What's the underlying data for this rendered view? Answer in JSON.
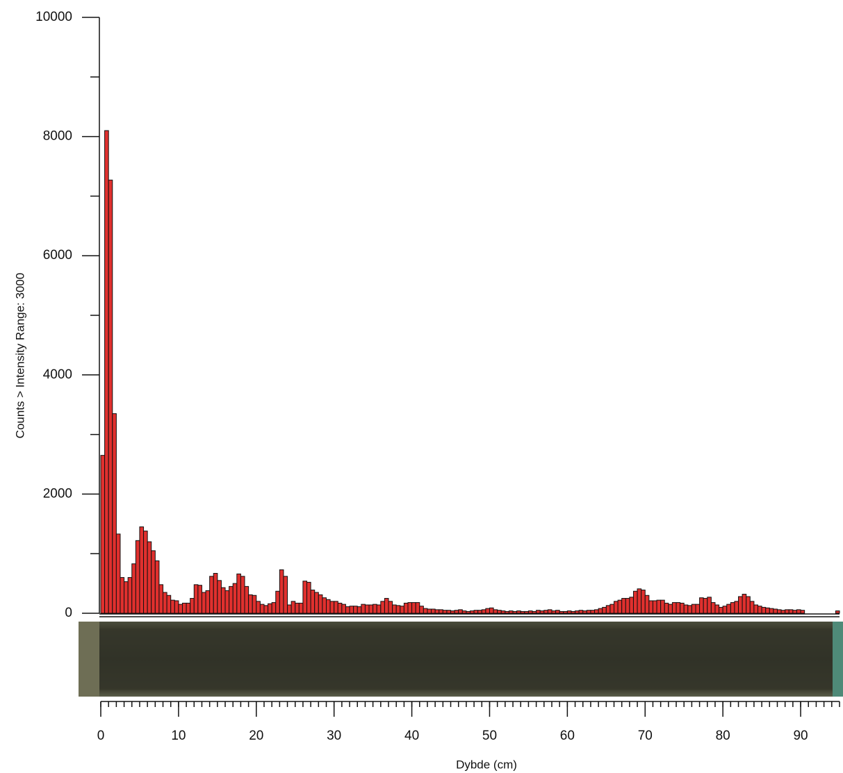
{
  "chart_data": {
    "type": "histogram",
    "xlabel": "Dybde (cm)",
    "ylabel": "Counts > Intensity Range: 3000",
    "color": "#e0302e",
    "bins": [
      0,
      0.5,
      1,
      1.5,
      2,
      2.5,
      3,
      3.5,
      4,
      4.5,
      5,
      5.5,
      6,
      6.5,
      7,
      7.5,
      8,
      8.5,
      9,
      9.5,
      10,
      10.5,
      11,
      11.5,
      12,
      12.5,
      13,
      13.5,
      14,
      14.5,
      15,
      15.5,
      16,
      16.5,
      17,
      17.5,
      18,
      18.5,
      19,
      19.5,
      20,
      20.5,
      21,
      21.5,
      22,
      22.5,
      23,
      23.5,
      24,
      24.5,
      25,
      25.5,
      26,
      26.5,
      27,
      27.5,
      28,
      28.5,
      29,
      29.5,
      30,
      30.5,
      31,
      31.5,
      32,
      32.5,
      33,
      33.5,
      34,
      34.5,
      35,
      35.5,
      36,
      36.5,
      37,
      37.5,
      38,
      38.5,
      39,
      39.5,
      40,
      40.5,
      41,
      41.5,
      42,
      42.5,
      43,
      43.5,
      44,
      44.5,
      45,
      45.5,
      46,
      46.5,
      47,
      47.5,
      48,
      48.5,
      49,
      49.5,
      50,
      50.5,
      51,
      51.5,
      52,
      52.5,
      53,
      53.5,
      54,
      54.5,
      55,
      55.5,
      56,
      56.5,
      57,
      57.5,
      58,
      58.5,
      59,
      59.5,
      60,
      60.5,
      61,
      61.5,
      62,
      62.5,
      63,
      63.5,
      64,
      64.5,
      65,
      65.5,
      66,
      66.5,
      67,
      67.5,
      68,
      68.5,
      69,
      69.5,
      70,
      70.5,
      71,
      71.5,
      72,
      72.5,
      73,
      73.5,
      74,
      74.5,
      75,
      75.5,
      76,
      76.5,
      77,
      77.5,
      78,
      78.5,
      79,
      79.5,
      80,
      80.5,
      81,
      81.5,
      82,
      82.5,
      83,
      83.5,
      84,
      84.5,
      85,
      85.5,
      86,
      86.5,
      87,
      87.5,
      88,
      88.5,
      89,
      89.5,
      90,
      90.5,
      91,
      91.5,
      92,
      92.5,
      93,
      93.5,
      94,
      94.5,
      95
    ],
    "values": [
      2650,
      8100,
      7270,
      3350,
      1330,
      600,
      530,
      600,
      830,
      1220,
      1450,
      1380,
      1200,
      1050,
      880,
      480,
      350,
      300,
      220,
      210,
      150,
      170,
      170,
      250,
      480,
      470,
      350,
      380,
      620,
      670,
      550,
      430,
      380,
      450,
      500,
      660,
      620,
      450,
      310,
      300,
      200,
      150,
      130,
      160,
      180,
      370,
      730,
      620,
      140,
      200,
      170,
      170,
      540,
      520,
      390,
      350,
      310,
      260,
      230,
      200,
      200,
      170,
      150,
      110,
      120,
      120,
      110,
      150,
      140,
      140,
      150,
      140,
      200,
      250,
      200,
      140,
      130,
      120,
      170,
      180,
      180,
      180,
      120,
      80,
      70,
      70,
      60,
      60,
      50,
      50,
      40,
      50,
      60,
      40,
      30,
      40,
      50,
      50,
      60,
      80,
      90,
      60,
      50,
      40,
      30,
      40,
      30,
      40,
      30,
      30,
      40,
      30,
      50,
      40,
      50,
      60,
      40,
      50,
      30,
      30,
      40,
      30,
      40,
      50,
      40,
      50,
      50,
      60,
      80,
      100,
      130,
      150,
      200,
      220,
      250,
      250,
      270,
      370,
      410,
      390,
      300,
      210,
      210,
      220,
      220,
      170,
      150,
      180,
      180,
      170,
      140,
      130,
      150,
      150,
      260,
      250,
      270,
      180,
      140,
      100,
      120,
      150,
      180,
      200,
      280,
      320,
      280,
      200,
      140,
      120,
      100,
      90,
      80,
      70,
      60,
      50,
      60,
      60,
      50,
      60,
      50,
      0,
      0,
      0,
      0,
      0,
      0,
      0,
      0,
      40
    ],
    "xlim": [
      0,
      95
    ],
    "xticks": [
      0,
      10,
      20,
      30,
      40,
      50,
      60,
      70,
      80,
      90
    ],
    "ylim": [
      0,
      10000
    ],
    "yticks": [
      0,
      2000,
      4000,
      6000,
      8000,
      10000
    ]
  }
}
